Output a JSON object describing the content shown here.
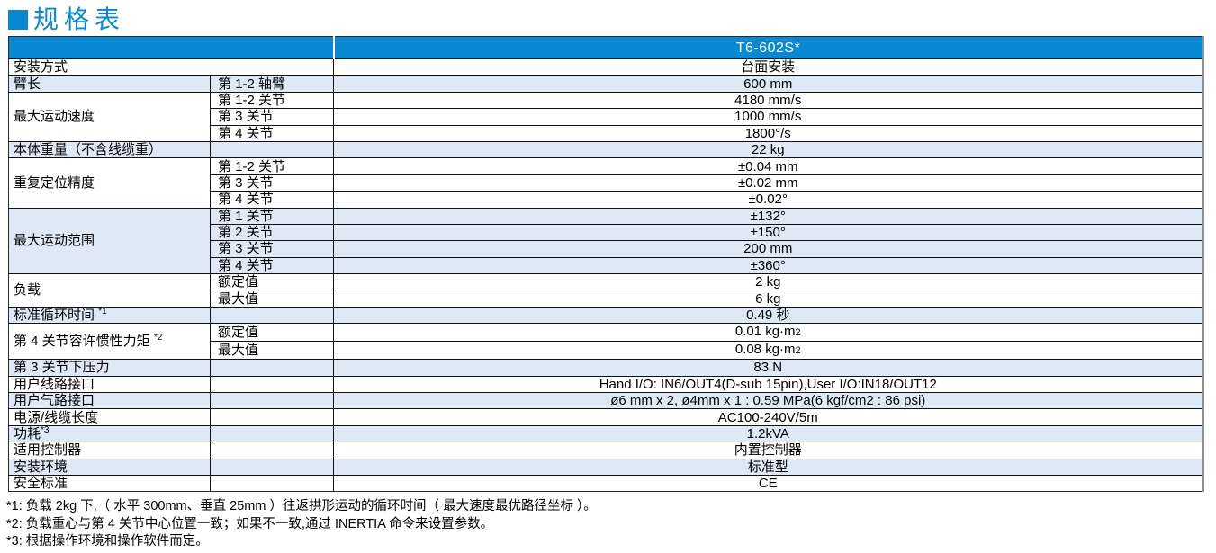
{
  "colors": {
    "accent": "#0989d4",
    "row_alt": "#dfe9f6",
    "header_text": "#ffffff"
  },
  "title": {
    "text": "规格表"
  },
  "table": {
    "model_header": "T6-602S*",
    "groups": [
      {
        "label": "安装方式",
        "rows": [
          {
            "sub": "",
            "value": "台面安装"
          }
        ]
      },
      {
        "label": "臂长",
        "rows": [
          {
            "sub": "第 1-2 轴臂",
            "value": "600 mm"
          }
        ]
      },
      {
        "label": "最大运动速度",
        "rows": [
          {
            "sub": "第 1-2 关节",
            "value": "4180 mm/s"
          },
          {
            "sub": "第 3 关节",
            "value": "1000 mm/s"
          },
          {
            "sub": "第 4 关节",
            "value": "1800°/s"
          }
        ]
      },
      {
        "label": "本体重量（不含线缆重）",
        "rows": [
          {
            "sub": "",
            "value": "22 kg"
          }
        ]
      },
      {
        "label": "重复定位精度",
        "rows": [
          {
            "sub": "第 1-2 关节",
            "value": "±0.04 mm"
          },
          {
            "sub": "第 3 关节",
            "value": "±0.02 mm"
          },
          {
            "sub": "第 4 关节",
            "value": "±0.02°"
          }
        ]
      },
      {
        "label": "最大运动范围",
        "rows": [
          {
            "sub": "第 1 关节",
            "value": "±132°"
          },
          {
            "sub": "第 2 关节",
            "value": "±150°"
          },
          {
            "sub": "第 3 关节",
            "value": "200 mm"
          },
          {
            "sub": "第 4 关节",
            "value": "±360°"
          }
        ]
      },
      {
        "label": "负载",
        "rows": [
          {
            "sub": "额定值",
            "value": "2 kg"
          },
          {
            "sub": "最大值",
            "value": "6 kg"
          }
        ]
      },
      {
        "label": "标准循环时间 ",
        "label_sup": "*1",
        "rows": [
          {
            "sub": "",
            "value": "0.49 秒"
          }
        ]
      },
      {
        "label": "第 4 关节容许惯性力矩 ",
        "label_sup": "*2",
        "rows": [
          {
            "sub": "额定值",
            "value": "0.01 kg·m",
            "value_sub": "2"
          },
          {
            "sub": "最大值",
            "value": "0.08 kg·m",
            "value_sub": "2"
          }
        ]
      },
      {
        "label": "第 3 关节下压力",
        "rows": [
          {
            "sub": "",
            "value": "83 N"
          }
        ]
      },
      {
        "label": "用户线路接口",
        "rows": [
          {
            "sub": "",
            "value": "Hand I/O: IN6/OUT4(D-sub 15pin),User I/O:IN18/OUT12"
          }
        ]
      },
      {
        "label": "用户气路接口",
        "rows": [
          {
            "sub": "",
            "value": "ø6 mm x 2, ø4mm x 1 : 0.59 MPa(6 kgf/cm2 : 86 psi)"
          }
        ]
      },
      {
        "label": "电源/线缆长度",
        "rows": [
          {
            "sub": "",
            "value": "AC100-240V/5m"
          }
        ]
      },
      {
        "label": "功耗",
        "label_sup": "*3",
        "rows": [
          {
            "sub": "",
            "value": "1.2kVA"
          }
        ]
      },
      {
        "label": "适用控制器",
        "rows": [
          {
            "sub": "",
            "value": "内置控制器"
          }
        ]
      },
      {
        "label": "安装环境",
        "rows": [
          {
            "sub": "",
            "value": "标准型"
          }
        ]
      },
      {
        "label": "安全标准",
        "rows": [
          {
            "sub": "",
            "value": "CE"
          }
        ]
      }
    ]
  },
  "footnotes": [
    "*1: 负载 2kg 下,（ 水平 300mm、垂直 25mm ）往返拱形运动的循环时间（ 最大速度最优路径坐标 ）。",
    "*2: 负载重心与第 4 关节中心位置一致；如果不一致,通过 INERTIA 命令来设置参数。",
    "*3: 根据操作环境和操作软件而定。"
  ]
}
